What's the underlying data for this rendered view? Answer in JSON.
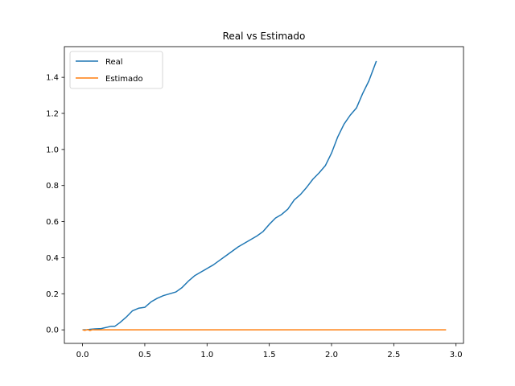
{
  "chart_data": {
    "type": "line",
    "title": "Real vs Estimado",
    "xlabel": "",
    "ylabel": "",
    "xlim": [
      -0.146,
      3.06
    ],
    "ylim": [
      -0.075,
      1.57
    ],
    "xticks": [
      0.0,
      0.5,
      1.0,
      1.5,
      2.0,
      2.5,
      3.0
    ],
    "xtick_labels": [
      "0.0",
      "0.5",
      "1.0",
      "1.5",
      "2.0",
      "2.5",
      "3.0"
    ],
    "yticks": [
      0.0,
      0.2,
      0.4,
      0.6,
      0.8,
      1.0,
      1.2,
      1.4
    ],
    "ytick_labels": [
      "0.0",
      "0.2",
      "0.4",
      "0.6",
      "0.8",
      "1.0",
      "1.2",
      "1.4"
    ],
    "grid": false,
    "legend_position": "top-left",
    "series": [
      {
        "name": "Real",
        "color": "#1f77b4",
        "x": [
          0.0,
          0.03,
          0.06,
          0.1,
          0.15,
          0.2,
          0.23,
          0.26,
          0.3,
          0.35,
          0.4,
          0.45,
          0.5,
          0.55,
          0.6,
          0.65,
          0.7,
          0.75,
          0.8,
          0.85,
          0.9,
          0.95,
          1.0,
          1.05,
          1.1,
          1.15,
          1.2,
          1.25,
          1.3,
          1.35,
          1.4,
          1.45,
          1.5,
          1.55,
          1.6,
          1.65,
          1.7,
          1.75,
          1.8,
          1.85,
          1.9,
          1.95,
          2.0,
          2.05,
          2.1,
          2.15,
          2.2,
          2.25,
          2.3,
          2.36
        ],
        "y": [
          0.0,
          0.0,
          0.003,
          0.005,
          0.007,
          0.015,
          0.02,
          0.02,
          0.04,
          0.07,
          0.105,
          0.12,
          0.125,
          0.155,
          0.175,
          0.19,
          0.2,
          0.21,
          0.235,
          0.27,
          0.3,
          0.32,
          0.34,
          0.36,
          0.385,
          0.41,
          0.435,
          0.46,
          0.48,
          0.5,
          0.52,
          0.545,
          0.585,
          0.62,
          0.64,
          0.67,
          0.72,
          0.75,
          0.79,
          0.835,
          0.87,
          0.91,
          0.98,
          1.07,
          1.14,
          1.19,
          1.23,
          1.31,
          1.38,
          1.49
        ]
      },
      {
        "name": "Estimado",
        "color": "#ff7f0e",
        "x": [
          0.0,
          0.02,
          0.04,
          0.06,
          0.08,
          0.1,
          2.92
        ],
        "y": [
          0.0,
          -0.003,
          0.002,
          -0.004,
          0.001,
          0.0,
          0.0
        ]
      }
    ]
  }
}
